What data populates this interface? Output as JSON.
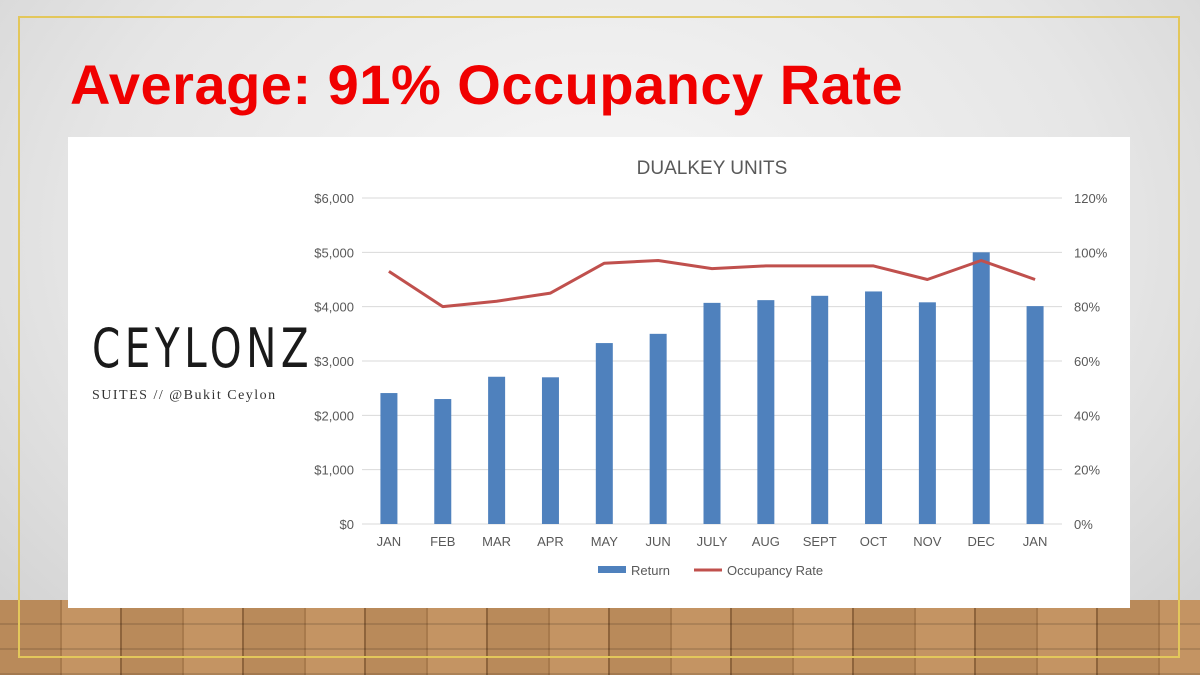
{
  "slide": {
    "title": "Average: 91% Occupancy Rate",
    "logo_text": "CEYLONZ",
    "logo_sub": "SUITES // @Bukit Ceylon"
  },
  "chart_data": {
    "type": "bar+line",
    "title": "DUALKEY UNITS",
    "categories": [
      "JAN",
      "FEB",
      "MAR",
      "APR",
      "MAY",
      "JUN",
      "JULY",
      "AUG",
      "SEPT",
      "OCT",
      "NOV",
      "DEC",
      "JAN"
    ],
    "series": [
      {
        "name": "Return",
        "type": "bar",
        "axis": "left",
        "color": "#4f81bd",
        "values": [
          2410,
          2300,
          2710,
          2700,
          3330,
          3500,
          4070,
          4120,
          4200,
          4280,
          4080,
          5000,
          4010
        ]
      },
      {
        "name": "Occupancy Rate",
        "type": "line",
        "axis": "right",
        "color": "#c0504d",
        "values": [
          93,
          80,
          82,
          85,
          96,
          97,
          94,
          95,
          95,
          95,
          90,
          97,
          90
        ]
      }
    ],
    "ylim": [
      0,
      6000
    ],
    "y_ticks": [
      "$0",
      "$1,000",
      "$2,000",
      "$3,000",
      "$4,000",
      "$5,000",
      "$6,000"
    ],
    "y2lim": [
      0,
      120
    ],
    "y2_ticks": [
      "0%",
      "20%",
      "40%",
      "60%",
      "80%",
      "100%",
      "120%"
    ],
    "grid": true,
    "legend": "bottom"
  }
}
